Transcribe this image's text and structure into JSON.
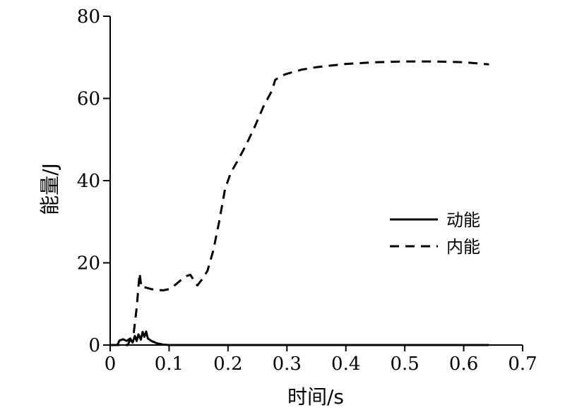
{
  "chart_data": {
    "type": "line",
    "xlabel": "时间/s",
    "ylabel": "能量/J",
    "xlim": [
      0,
      0.7
    ],
    "ylim": [
      0,
      80
    ],
    "x_ticks": [
      0,
      0.1,
      0.2,
      0.3,
      0.4,
      0.5,
      0.6,
      0.7
    ],
    "x_tick_labels": [
      "0",
      "0.1",
      "0.2",
      "0.3",
      "0.4",
      "0.5",
      "0.6",
      "0.7"
    ],
    "y_ticks": [
      0,
      20,
      40,
      60,
      80
    ],
    "y_tick_labels": [
      "0",
      "20",
      "40",
      "60",
      "80"
    ],
    "grid": false,
    "legend_position": "right-middle",
    "series": [
      {
        "name": "动能",
        "style": "solid",
        "color": "#000000",
        "points": [
          [
            0.0,
            0.0
          ],
          [
            0.012,
            0.0
          ],
          [
            0.016,
            1.1
          ],
          [
            0.022,
            1.4
          ],
          [
            0.028,
            1.0
          ],
          [
            0.034,
            1.6
          ],
          [
            0.038,
            0.6
          ],
          [
            0.042,
            2.2
          ],
          [
            0.045,
            1.0
          ],
          [
            0.048,
            2.6
          ],
          [
            0.052,
            1.3
          ],
          [
            0.055,
            3.2
          ],
          [
            0.058,
            2.0
          ],
          [
            0.061,
            3.3
          ],
          [
            0.064,
            1.6
          ],
          [
            0.07,
            1.0
          ],
          [
            0.08,
            0.4
          ],
          [
            0.09,
            0.1
          ],
          [
            0.1,
            0.0
          ],
          [
            0.2,
            0.0
          ],
          [
            0.3,
            0.0
          ],
          [
            0.4,
            0.0
          ],
          [
            0.5,
            0.0
          ],
          [
            0.6,
            0.0
          ],
          [
            0.643,
            0.0
          ]
        ]
      },
      {
        "name": "内能",
        "style": "dashed",
        "color": "#000000",
        "points": [
          [
            0.0,
            0.0
          ],
          [
            0.03,
            0.0
          ],
          [
            0.036,
            2.0
          ],
          [
            0.04,
            3.0
          ],
          [
            0.045,
            9.0
          ],
          [
            0.05,
            17.5
          ],
          [
            0.053,
            14.0
          ],
          [
            0.06,
            14.0
          ],
          [
            0.07,
            13.6
          ],
          [
            0.08,
            13.4
          ],
          [
            0.09,
            13.3
          ],
          [
            0.1,
            13.6
          ],
          [
            0.11,
            14.6
          ],
          [
            0.12,
            15.8
          ],
          [
            0.13,
            16.8
          ],
          [
            0.136,
            17.1
          ],
          [
            0.14,
            16.2
          ],
          [
            0.148,
            14.5
          ],
          [
            0.155,
            15.8
          ],
          [
            0.165,
            18.0
          ],
          [
            0.175,
            23.0
          ],
          [
            0.185,
            30.0
          ],
          [
            0.195,
            38.0
          ],
          [
            0.205,
            42.0
          ],
          [
            0.215,
            44.5
          ],
          [
            0.23,
            48.5
          ],
          [
            0.245,
            53.0
          ],
          [
            0.26,
            58.0
          ],
          [
            0.275,
            62.0
          ],
          [
            0.28,
            64.5
          ],
          [
            0.29,
            65.5
          ],
          [
            0.3,
            66.0
          ],
          [
            0.325,
            67.0
          ],
          [
            0.35,
            67.6
          ],
          [
            0.4,
            68.4
          ],
          [
            0.45,
            68.8
          ],
          [
            0.5,
            69.0
          ],
          [
            0.55,
            69.0
          ],
          [
            0.6,
            68.8
          ],
          [
            0.643,
            68.3
          ]
        ]
      }
    ]
  }
}
